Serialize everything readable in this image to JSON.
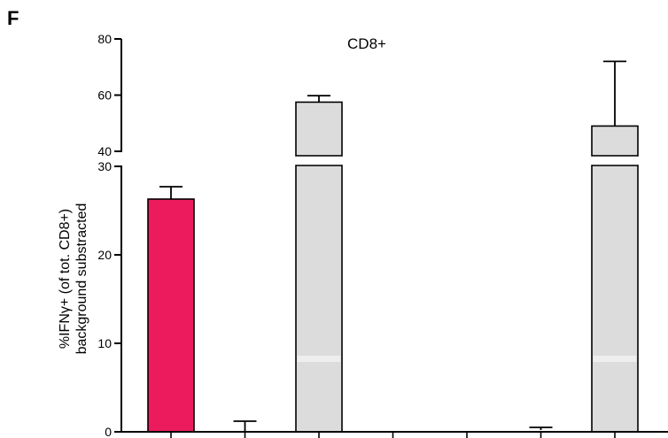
{
  "panel_letter": "F",
  "chart_data": {
    "type": "bar",
    "title": "CD8+",
    "ylabel_lines": [
      "%IFNγ+ (of tot. CD8+)",
      "background substracted"
    ],
    "xlabel": "",
    "axis_break": {
      "lower": [
        0,
        30
      ],
      "upper": [
        40,
        80
      ]
    },
    "lower_ticks": [
      0,
      10,
      20,
      30
    ],
    "upper_ticks": [
      40,
      60,
      80
    ],
    "categories": [
      "",
      "",
      "",
      "",
      "",
      "",
      ""
    ],
    "values": [
      26.3,
      0,
      57.5,
      0,
      0,
      0.2,
      49
    ],
    "error_upper": [
      27.7,
      1.2,
      59.8,
      0,
      0,
      0.5,
      72
    ],
    "bar_colors": [
      "#ec1b5e",
      "none",
      "#dcdcdc",
      "none",
      "none",
      "none",
      "#dcdcdc"
    ],
    "grid": false
  }
}
